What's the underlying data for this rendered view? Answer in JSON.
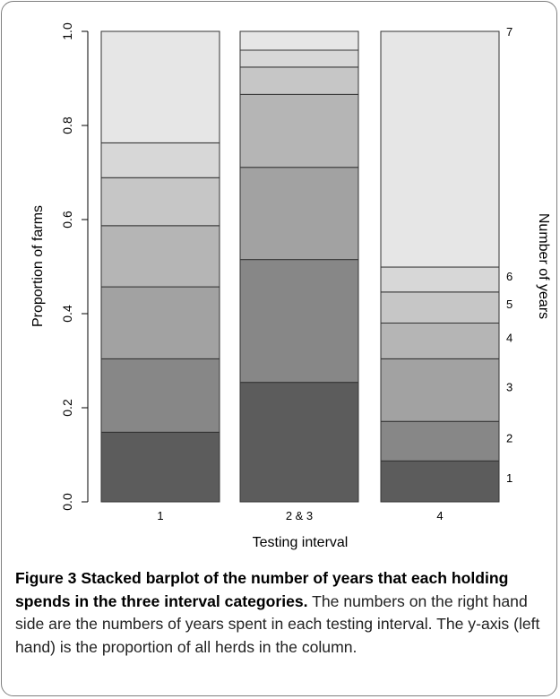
{
  "chart_data": {
    "type": "bar",
    "stacked": true,
    "categories": [
      "1",
      "2 & 3",
      "4"
    ],
    "xlabel": "Testing interval",
    "ylabel": "Proportion of farms",
    "right_label": "Number of years",
    "ylim": [
      0,
      1
    ],
    "yticks": [
      "0.0",
      "0.2",
      "0.4",
      "0.6",
      "0.8",
      "1.0"
    ],
    "series": [
      {
        "name": "1",
        "values": [
          0.148,
          0.254,
          0.087
        ]
      },
      {
        "name": "2",
        "values": [
          0.156,
          0.261,
          0.084
        ]
      },
      {
        "name": "3",
        "values": [
          0.153,
          0.196,
          0.133
        ]
      },
      {
        "name": "4",
        "values": [
          0.13,
          0.155,
          0.076
        ]
      },
      {
        "name": "5",
        "values": [
          0.102,
          0.058,
          0.066
        ]
      },
      {
        "name": "6",
        "values": [
          0.074,
          0.036,
          0.053
        ]
      },
      {
        "name": "7",
        "values": [
          0.237,
          0.04,
          0.501
        ]
      }
    ],
    "colors": [
      "#5c5c5c",
      "#878787",
      "#a2a2a2",
      "#b5b5b5",
      "#c6c6c6",
      "#d7d7d7",
      "#e6e6e6"
    ],
    "right_labels_category": "4"
  },
  "caption": {
    "bold": "Figure 3 Stacked barplot of the number of years that each holding spends in the three interval categories.",
    "text": " The numbers on the right hand side are the numbers of years spent in each testing interval. The y-axis (left hand) is the proportion of all herds in the column."
  }
}
